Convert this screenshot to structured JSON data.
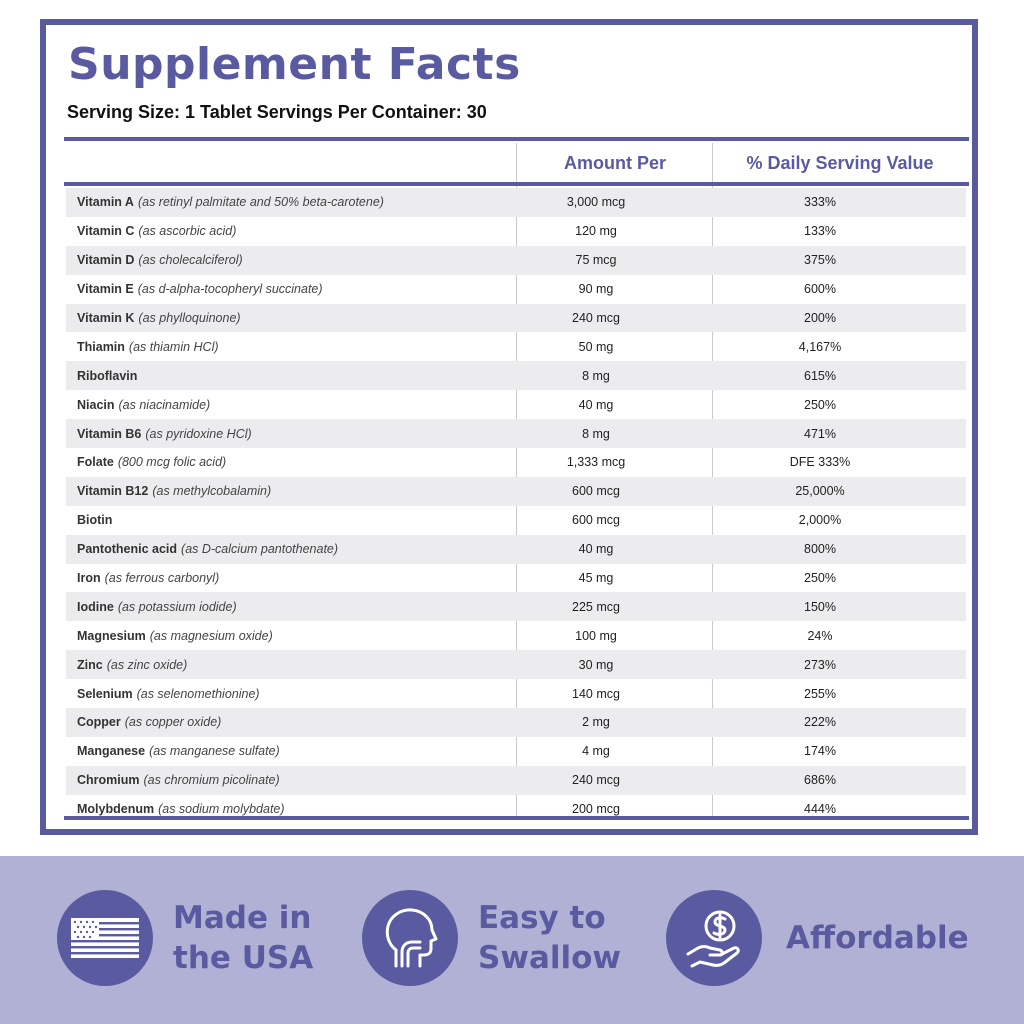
{
  "title": "Supplement Facts",
  "serving_line": "Serving Size: 1 Tablet Servings Per Container: 30",
  "columns": {
    "name": "",
    "amount": "Amount Per",
    "daily_value": "% Daily Serving Value"
  },
  "rows": [
    {
      "name": "Vitamin A",
      "source": "(as retinyl palmitate and 50% beta-carotene)",
      "amount": "3,000 mcg",
      "dv": "333%"
    },
    {
      "name": "Vitamin C",
      "source": "(as ascorbic acid)",
      "amount": "120 mg",
      "dv": "133%"
    },
    {
      "name": "Vitamin D",
      "source": "(as cholecalciferol)",
      "amount": "75 mcg",
      "dv": "375%"
    },
    {
      "name": "Vitamin E",
      "source": "(as d-alpha-tocopheryl succinate)",
      "amount": "90 mg",
      "dv": "600%"
    },
    {
      "name": "Vitamin K",
      "source": "(as phylloquinone)",
      "amount": "240 mcg",
      "dv": "200%"
    },
    {
      "name": "Thiamin",
      "source": "(as thiamin HCl)",
      "amount": "50 mg",
      "dv": "4,167%"
    },
    {
      "name": "Riboflavin",
      "source": "",
      "amount": "8 mg",
      "dv": "615%"
    },
    {
      "name": "Niacin",
      "source": "(as niacinamide)",
      "amount": "40 mg",
      "dv": "250%"
    },
    {
      "name": "Vitamin B6",
      "source": "(as pyridoxine HCl)",
      "amount": "8 mg",
      "dv": "471%"
    },
    {
      "name": "Folate",
      "source": "(800 mcg folic acid)",
      "amount": "1,333 mcg",
      "dv": "DFE 333%"
    },
    {
      "name": "Vitamin B12",
      "source": "(as methylcobalamin)",
      "amount": "600 mcg",
      "dv": "25,000%"
    },
    {
      "name": "Biotin",
      "source": "",
      "amount": "600 mcg",
      "dv": "2,000%"
    },
    {
      "name": "Pantothenic acid",
      "source": "(as D-calcium pantothenate)",
      "amount": "40 mg",
      "dv": "800%"
    },
    {
      "name": "Iron",
      "source": "(as ferrous carbonyl)",
      "amount": "45 mg",
      "dv": "250%"
    },
    {
      "name": "Iodine",
      "source": "(as potassium iodide)",
      "amount": "225 mcg",
      "dv": "150%"
    },
    {
      "name": "Magnesium",
      "source": "(as magnesium oxide)",
      "amount": "100 mg",
      "dv": "24%"
    },
    {
      "name": "Zinc",
      "source": "(as zinc oxide)",
      "amount": "30 mg",
      "dv": "273%"
    },
    {
      "name": "Selenium",
      "source": "(as selenomethionine)",
      "amount": "140 mcg",
      "dv": "255%"
    },
    {
      "name": "Copper",
      "source": "(as copper oxide)",
      "amount": "2 mg",
      "dv": "222%"
    },
    {
      "name": "Manganese",
      "source": "(as manganese sulfate)",
      "amount": "4 mg",
      "dv": "174%"
    },
    {
      "name": "Chromium",
      "source": "(as chromium picolinate)",
      "amount": "240 mcg",
      "dv": "686%"
    },
    {
      "name": "Molybdenum",
      "source": "(as sodium molybdate)",
      "amount": "200 mcg",
      "dv": "444%"
    }
  ],
  "features": [
    {
      "icon": "us-flag-icon",
      "line1": "Made in",
      "line2": "the USA"
    },
    {
      "icon": "head-throat-icon",
      "line1": "Easy to",
      "line2": "Swallow"
    },
    {
      "icon": "hand-coin-dollar-icon",
      "line1": "Affordable",
      "line2": ""
    }
  ],
  "colors": {
    "accent": "#5a5aa0",
    "footer_bg": "#b1b1d6",
    "row_shade": "#ececef"
  }
}
